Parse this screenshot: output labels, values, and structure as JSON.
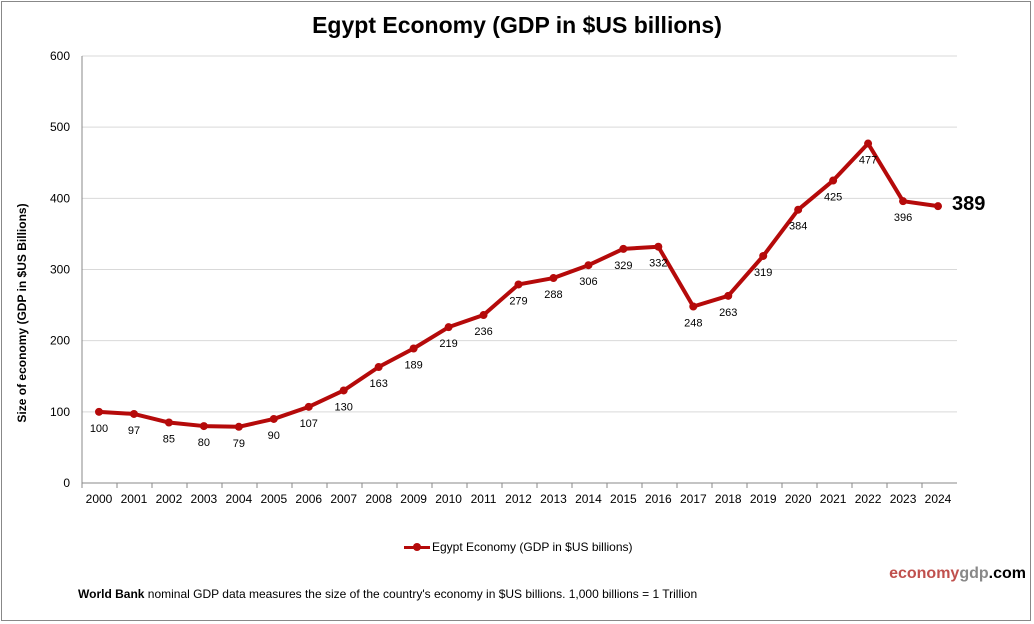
{
  "chart_data": {
    "type": "line",
    "title": "Egypt Economy (GDP in $US billions)",
    "xlabel": "",
    "ylabel": "Size of economy (GDP in $US Billions)",
    "ylim": [
      0,
      600
    ],
    "yticks": [
      0,
      100,
      200,
      300,
      400,
      500,
      600
    ],
    "grid": true,
    "legend": "bottom",
    "categories": [
      "2000",
      "2001",
      "2002",
      "2003",
      "2004",
      "2005",
      "2006",
      "2007",
      "2008",
      "2009",
      "2010",
      "2011",
      "2012",
      "2013",
      "2014",
      "2015",
      "2016",
      "2017",
      "2018",
      "2019",
      "2020",
      "2021",
      "2022",
      "2023",
      "2024"
    ],
    "series": [
      {
        "name": "Egypt Economy (GDP in $US billions)",
        "color": "#B50A0A",
        "values": [
          100,
          97,
          85,
          80,
          79,
          90,
          107,
          130,
          163,
          189,
          219,
          236,
          279,
          288,
          306,
          329,
          332,
          248,
          263,
          319,
          384,
          425,
          477,
          396,
          389
        ]
      }
    ],
    "highlighted_last_value": "389"
  },
  "footer": {
    "source_bold": "World Bank",
    "source_text": " nominal GDP data  measures the size of the country's economy in $US billions. 1,000 billions = 1 Trillion",
    "brand_part1": "economy",
    "brand_part2": "gdp",
    "brand_part3": ".com"
  }
}
